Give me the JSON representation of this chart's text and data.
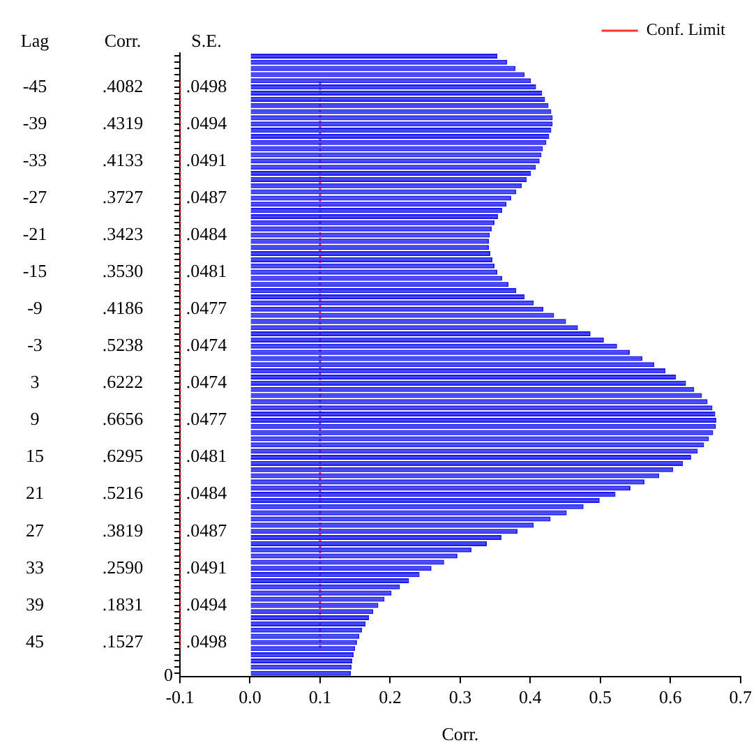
{
  "chart_data": {
    "type": "bar",
    "orientation": "horizontal",
    "xlabel": "Corr.",
    "ylabel": "Lag",
    "categories": [
      null,
      null,
      null,
      null,
      null,
      "-45",
      null,
      null,
      null,
      null,
      null,
      "-39",
      null,
      null,
      null,
      null,
      null,
      "-33",
      null,
      null,
      null,
      null,
      null,
      "-27",
      null,
      null,
      null,
      null,
      null,
      "-21",
      null,
      null,
      null,
      null,
      null,
      "-15",
      null,
      null,
      null,
      null,
      null,
      "-9",
      null,
      null,
      null,
      null,
      null,
      "-3",
      null,
      null,
      null,
      null,
      null,
      "3",
      null,
      null,
      null,
      null,
      null,
      "9",
      null,
      null,
      null,
      null,
      null,
      "15",
      null,
      null,
      null,
      null,
      null,
      "21",
      null,
      null,
      null,
      null,
      null,
      "27",
      null,
      null,
      null,
      null,
      null,
      "33",
      null,
      null,
      null,
      null,
      null,
      "39",
      null,
      null,
      null,
      null,
      null,
      "45",
      null,
      null,
      null,
      null,
      null
    ],
    "values": [
      0.353,
      0.367,
      0.379,
      0.392,
      0.401,
      0.4082,
      0.417,
      0.421,
      0.426,
      0.43,
      0.432,
      0.4319,
      0.43,
      0.427,
      0.423,
      0.418,
      0.416,
      0.4133,
      0.408,
      0.401,
      0.395,
      0.388,
      0.38,
      0.3727,
      0.366,
      0.36,
      0.354,
      0.349,
      0.345,
      0.3423,
      0.341,
      0.341,
      0.343,
      0.346,
      0.349,
      0.353,
      0.36,
      0.369,
      0.38,
      0.392,
      0.405,
      0.4186,
      0.434,
      0.451,
      0.468,
      0.486,
      0.505,
      0.5238,
      0.542,
      0.56,
      0.577,
      0.593,
      0.608,
      0.6222,
      0.634,
      0.645,
      0.653,
      0.66,
      0.664,
      0.6656,
      0.665,
      0.661,
      0.655,
      0.648,
      0.639,
      0.6295,
      0.618,
      0.604,
      0.584,
      0.563,
      0.543,
      0.5216,
      0.499,
      0.476,
      0.452,
      0.429,
      0.405,
      0.3819,
      0.359,
      0.338,
      0.316,
      0.296,
      0.277,
      0.259,
      0.242,
      0.227,
      0.214,
      0.202,
      0.192,
      0.1831,
      0.176,
      0.17,
      0.165,
      0.16,
      0.156,
      0.1527,
      0.15,
      0.148,
      0.146,
      0.145,
      0.144
    ],
    "value_labels": [
      null,
      null,
      null,
      null,
      null,
      ".4082",
      null,
      null,
      null,
      null,
      null,
      ".4319",
      null,
      null,
      null,
      null,
      null,
      ".4133",
      null,
      null,
      null,
      null,
      null,
      ".3727",
      null,
      null,
      null,
      null,
      null,
      ".3423",
      null,
      null,
      null,
      null,
      null,
      ".3530",
      null,
      null,
      null,
      null,
      null,
      ".4186",
      null,
      null,
      null,
      null,
      null,
      ".5238",
      null,
      null,
      null,
      null,
      null,
      ".6222",
      null,
      null,
      null,
      null,
      null,
      ".6656",
      null,
      null,
      null,
      null,
      null,
      ".6295",
      null,
      null,
      null,
      null,
      null,
      ".5216",
      null,
      null,
      null,
      null,
      null,
      ".3819",
      null,
      null,
      null,
      null,
      null,
      ".2590",
      null,
      null,
      null,
      null,
      null,
      ".1831",
      null,
      null,
      null,
      null,
      null,
      ".1527",
      null,
      null,
      null,
      null,
      null
    ],
    "color": "#1a1af0",
    "xlim": [
      -0.1,
      0.7
    ],
    "xticks": [
      {
        "value": -0.1,
        "label": "-0.1"
      },
      {
        "value": 0,
        "label": "0.0"
      },
      {
        "value": 0.1,
        "label": "0.1"
      },
      {
        "value": 0.2,
        "label": "0.2"
      },
      {
        "value": 0.3,
        "label": "0.3"
      },
      {
        "value": 0.4,
        "label": "0.4"
      },
      {
        "value": 0.5,
        "label": "0.5"
      },
      {
        "value": 0.6,
        "label": "0.6"
      },
      {
        "value": 0.7,
        "label": "0.7"
      }
    ],
    "ref_lines": [
      {
        "axis": "x",
        "value": 0.1,
        "label": "Conf. Limit",
        "color": "#ff3030",
        "line_style": "dotted"
      },
      {
        "axis": "x",
        "value": -0.1,
        "color": "#ff3030",
        "line_style": "dotted"
      }
    ],
    "annotations": [
      "Corr.",
      "S.E.",
      ".0498",
      ".0494",
      ".0491",
      ".0487",
      ".0484",
      ".0481",
      ".0477",
      ".0474",
      ".0474",
      ".0477",
      ".0481",
      ".0484",
      ".0487",
      ".0491",
      ".0494",
      ".0498",
      "0"
    ],
    "legend": "top right",
    "grid": false
  }
}
